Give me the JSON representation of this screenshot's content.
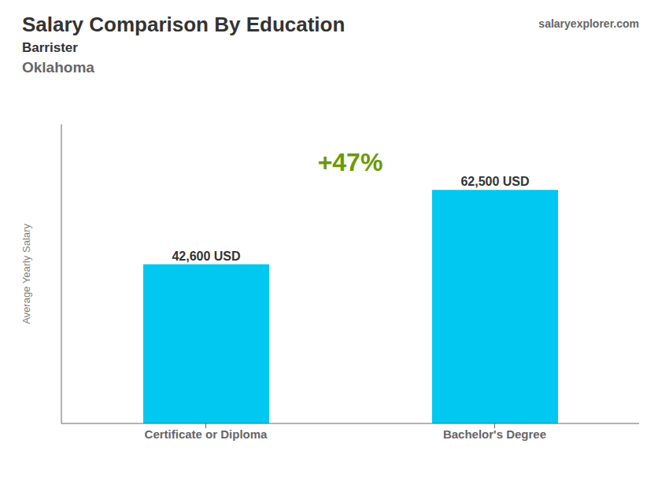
{
  "chart_data": {
    "type": "bar",
    "title": "Salary Comparison By Education",
    "subtitle": [
      "Barrister",
      "Oklahoma"
    ],
    "ylabel": "Average Yearly Salary",
    "categories": [
      "Certificate or Diploma",
      "Bachelor's Degree"
    ],
    "values": [
      42600,
      62500
    ],
    "value_labels": [
      "42,600 USD",
      "62,500 USD"
    ],
    "data_labels": true,
    "color": "#00C8F0",
    "ylim": [
      0,
      80000
    ],
    "tick_labels": "x",
    "grid": false,
    "annotations": [
      "+47%",
      "salaryexplorer.com"
    ]
  }
}
